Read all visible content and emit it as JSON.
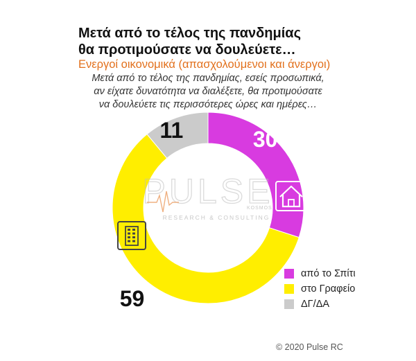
{
  "header": {
    "title_line1": "Μετά από το τέλος της πανδημίας",
    "title_line2": "θα προτιμούσατε να δουλεύετε…",
    "subtitle": "Ενεργοί οικονομικά  (απασχολούμενοι και άνεργοι)",
    "question_line1": "Μετά από το τέλος της πανδημίας, εσείς προσωπικά,",
    "question_line2": "αν είχατε δυνατότητα να διαλέξετε, θα προτιμούσατε",
    "question_line3": "να δουλεύετε τις περισσότερες ώρες και ημέρες…"
  },
  "watermark": {
    "brand": "PULSE",
    "tagline": "RESEARCH & CONSULTING",
    "small": "KOSMOS"
  },
  "chart_data": {
    "type": "pie",
    "variant": "donut",
    "categories": [
      "από το Σπίτι",
      "στο Γραφείο",
      "ΔΓ/ΔΑ"
    ],
    "values": [
      30,
      59,
      11
    ],
    "colors": [
      "#d83be0",
      "#ffee00",
      "#cbcbcb"
    ],
    "data_labels": [
      "30",
      "59",
      "11"
    ],
    "icons": [
      "house-icon",
      "office-building-icon",
      null
    ],
    "legend_position": "bottom-right"
  },
  "footer": {
    "copyright": "© 2020 Pulse RC"
  }
}
